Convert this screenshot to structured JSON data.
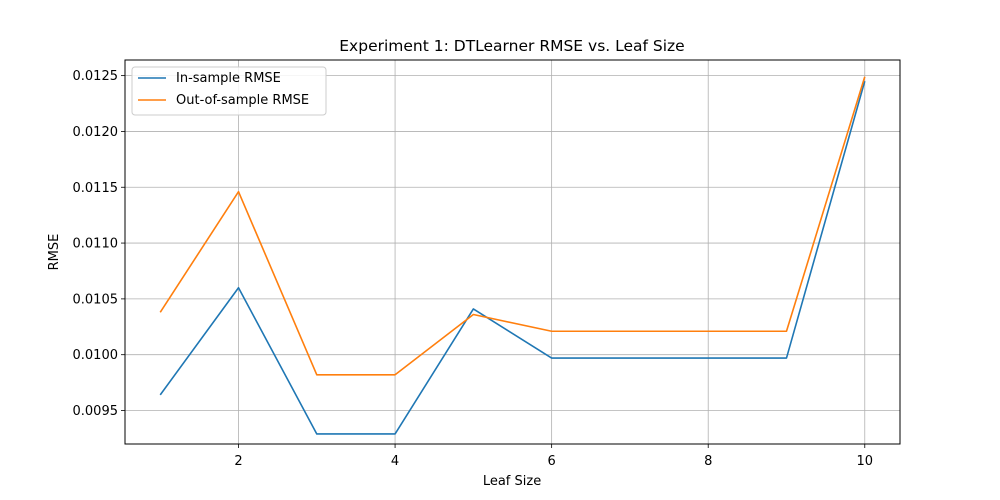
{
  "chart_data": {
    "type": "line",
    "title": "Experiment 1: DTLearner RMSE vs. Leaf Size",
    "xlabel": "Leaf Size",
    "ylabel": "RMSE",
    "x": [
      1,
      2,
      3,
      4,
      5,
      6,
      7,
      8,
      9,
      10
    ],
    "xlim": [
      0.55,
      10.45
    ],
    "ylim": [
      0.0092,
      0.01264
    ],
    "xticks": [
      2,
      4,
      6,
      8,
      10
    ],
    "xtick_labels": [
      "2",
      "4",
      "6",
      "8",
      "10"
    ],
    "yticks": [
      0.0095,
      0.01,
      0.0105,
      0.011,
      0.0115,
      0.012,
      0.0125
    ],
    "ytick_labels": [
      "0.0095",
      "0.0100",
      "0.0105",
      "0.0110",
      "0.0115",
      "0.0120",
      "0.0125"
    ],
    "grid": true,
    "legend_position": "upper-left",
    "series": [
      {
        "name": "In-sample RMSE",
        "color": "#1f77b4",
        "values": [
          0.00964,
          0.0106,
          0.00929,
          0.00929,
          0.01041,
          0.00997,
          0.00997,
          0.00997,
          0.00997,
          0.01245
        ]
      },
      {
        "name": "Out-of-sample RMSE",
        "color": "#ff7f0e",
        "values": [
          0.01038,
          0.01146,
          0.00982,
          0.00982,
          0.01036,
          0.01021,
          0.01021,
          0.01021,
          0.01021,
          0.01249
        ]
      }
    ]
  }
}
